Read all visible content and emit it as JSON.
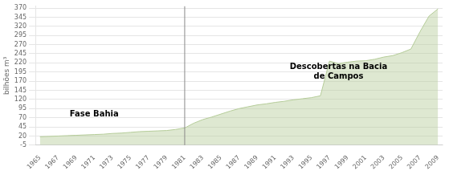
{
  "chart_data": {
    "type": "area",
    "x": [
      1965,
      1966,
      1967,
      1968,
      1969,
      1970,
      1971,
      1972,
      1973,
      1974,
      1975,
      1976,
      1977,
      1978,
      1979,
      1980,
      1981,
      1982,
      1983,
      1984,
      1985,
      1986,
      1987,
      1988,
      1989,
      1990,
      1991,
      1992,
      1993,
      1994,
      1995,
      1996,
      1997,
      1998,
      1999,
      2000,
      2001,
      2002,
      2003,
      2004,
      2005,
      2006,
      2007,
      2008,
      2009
    ],
    "values": [
      18,
      19,
      20,
      21,
      22,
      23,
      24,
      25,
      27,
      28,
      30,
      32,
      33,
      34,
      35,
      38,
      42,
      55,
      65,
      72,
      80,
      88,
      95,
      100,
      105,
      108,
      112,
      115,
      119,
      122,
      125,
      130,
      225,
      218,
      222,
      225,
      226,
      230,
      236,
      240,
      248,
      258,
      305,
      348,
      368
    ],
    "color": "#b5cc99",
    "xlim": [
      1964.5,
      2009.5
    ],
    "xticks": [
      1965,
      1967,
      1969,
      1971,
      1973,
      1975,
      1977,
      1979,
      1981,
      1983,
      1985,
      1987,
      1989,
      1991,
      1993,
      1995,
      1997,
      1999,
      2001,
      2003,
      2005,
      2007,
      2009
    ],
    "ylim": [
      -5,
      375
    ],
    "yticks": [
      -5,
      20,
      45,
      70,
      95,
      120,
      145,
      170,
      195,
      220,
      245,
      270,
      295,
      320,
      345,
      370
    ],
    "ylabel": "bilhões m³",
    "grid": "y",
    "vline": {
      "x": 1981,
      "color": "#888888"
    },
    "annotations": [
      {
        "text": "Fase Bahia",
        "x": 1971,
        "y": 80
      },
      {
        "text": "Descobertas na Bacia\nde Campos",
        "x": 1998,
        "y": 195
      }
    ]
  }
}
